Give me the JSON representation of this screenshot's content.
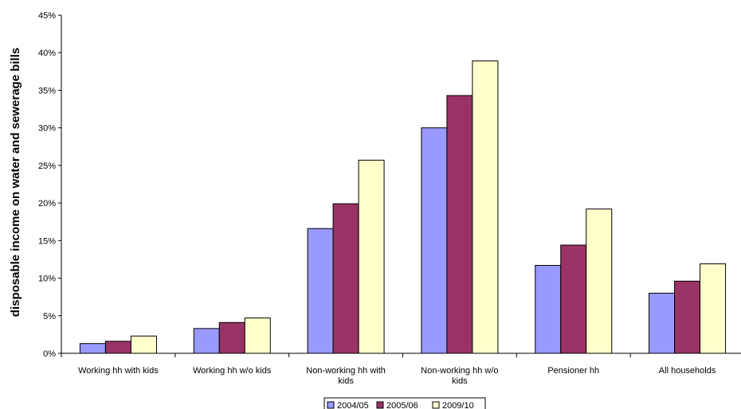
{
  "chart_data": {
    "type": "bar",
    "title": "",
    "xlabel": "",
    "ylabel": "disposable income on water and sewerage bills",
    "ylim": [
      0,
      45
    ],
    "ytick_step": 5,
    "ytick_format": "%",
    "grid": false,
    "legend_position": "bottom",
    "categories": [
      [
        "Working hh with kids"
      ],
      [
        "Working hh w/o kids"
      ],
      [
        "Non-working hh with",
        "kids"
      ],
      [
        "Non-working hh w/o",
        "kids"
      ],
      [
        "Pensioner hh"
      ],
      [
        "All households"
      ]
    ],
    "series": [
      {
        "name": "2004/05",
        "color": "#9999ff",
        "values": [
          1.3,
          3.3,
          16.6,
          30.0,
          11.7,
          8.0
        ]
      },
      {
        "name": "2005/06",
        "color": "#993366",
        "values": [
          1.6,
          4.1,
          19.9,
          34.3,
          14.4,
          9.6
        ]
      },
      {
        "name": "2009/10",
        "color": "#ffffcc",
        "values": [
          2.3,
          4.7,
          25.7,
          38.9,
          19.2,
          11.9
        ]
      }
    ]
  }
}
